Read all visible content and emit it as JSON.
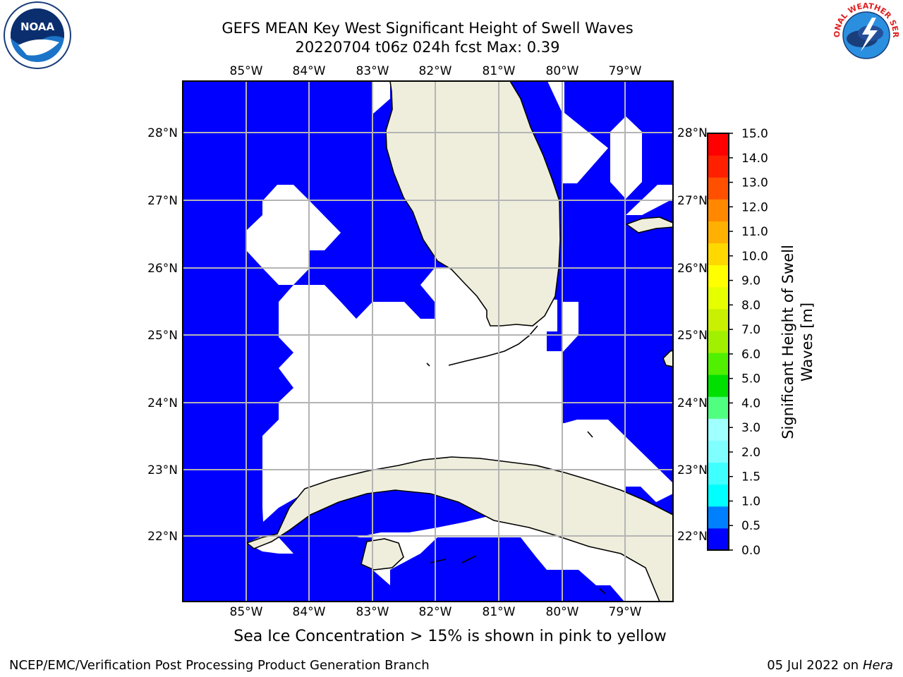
{
  "header": {
    "title_line1": "GEFS MEAN Key West Significant Height of Swell Waves",
    "title_line2": "20220704 t06z 024h fcst   Max: 0.39"
  },
  "logos": {
    "noaa_text": "NOAA",
    "nws_text": "NATIONAL WEATHER SERVICE"
  },
  "map": {
    "lon_labels": [
      "85°W",
      "84°W",
      "83°W",
      "82°W",
      "81°W",
      "80°W",
      "79°W"
    ],
    "lat_labels": [
      "28°N",
      "27°N",
      "26°N",
      "25°N",
      "24°N",
      "23°N",
      "22°N"
    ],
    "ocean_color": "#0000ff",
    "land_color": "#efeedc"
  },
  "colorbar": {
    "ticks": [
      "0.0",
      "0.5",
      "1.0",
      "1.5",
      "2.0",
      "3.0",
      "4.0",
      "5.0",
      "6.0",
      "7.0",
      "8.0",
      "9.0",
      "10.0",
      "11.0",
      "12.0",
      "13.0",
      "14.0",
      "15.0"
    ],
    "colors": [
      "#0000ff",
      "#0080ff",
      "#00ffff",
      "#40ffff",
      "#80ffff",
      "#a0ffff",
      "#50ff80",
      "#00e000",
      "#50f000",
      "#a0f000",
      "#c8f000",
      "#e6ff00",
      "#ffff00",
      "#ffd800",
      "#ffb000",
      "#ff8800",
      "#ff5000",
      "#ff2000",
      "#ff0000"
    ],
    "label": "Significant Height of Swell Waves [m]"
  },
  "note": "Sea Ice Concentration > 15% is shown in pink to yellow",
  "footer": {
    "left": "NCEP/EMC/Verification Post Processing Product Generation Branch",
    "right_date": "05 Jul 2022 on ",
    "right_host": "Hera"
  }
}
